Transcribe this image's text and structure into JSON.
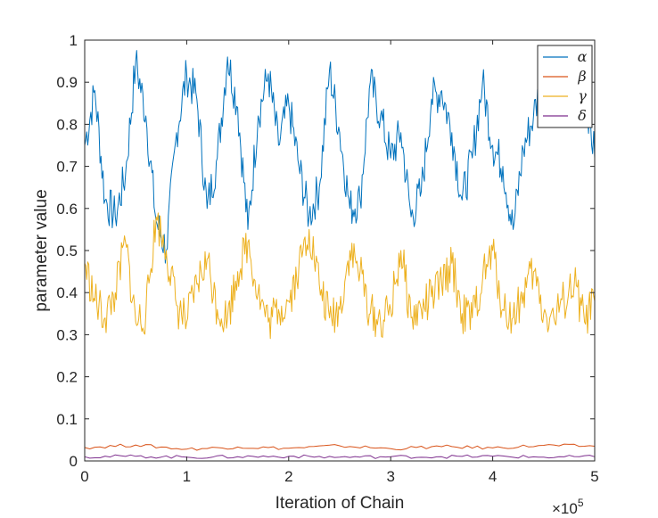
{
  "chart_data": {
    "type": "line",
    "title": "",
    "xlabel": "Iteration of Chain",
    "ylabel": "parameter value",
    "xlim": [
      0,
      5
    ],
    "ylim": [
      0,
      1
    ],
    "x_exponent_label": "×10",
    "x_exponent_power": "5",
    "x_ticks": [
      "0",
      "1",
      "2",
      "3",
      "4",
      "5"
    ],
    "y_ticks": [
      "0",
      "0.1",
      "0.2",
      "0.3",
      "0.4",
      "0.5",
      "0.6",
      "0.7",
      "0.8",
      "0.9",
      "1"
    ],
    "grid": false,
    "legend_position": "top-right",
    "series": [
      {
        "name": "α",
        "color": "#0072BD",
        "x": [
          0,
          0.1,
          0.2,
          0.3,
          0.4,
          0.5,
          0.6,
          0.7,
          0.8,
          0.9,
          1.0,
          1.1,
          1.2,
          1.3,
          1.4,
          1.5,
          1.6,
          1.7,
          1.8,
          1.9,
          2.0,
          2.1,
          2.2,
          2.3,
          2.4,
          2.5,
          2.6,
          2.7,
          2.8,
          2.9,
          3.0,
          3.1,
          3.2,
          3.3,
          3.4,
          3.5,
          3.6,
          3.7,
          3.8,
          3.9,
          4.0,
          4.1,
          4.2,
          4.3,
          4.4,
          4.5,
          4.6,
          4.7,
          4.8,
          4.9,
          5.0
        ],
        "values": [
          0.75,
          0.88,
          0.62,
          0.58,
          0.68,
          0.95,
          0.82,
          0.57,
          0.5,
          0.78,
          0.92,
          0.86,
          0.6,
          0.72,
          0.96,
          0.84,
          0.55,
          0.82,
          0.92,
          0.75,
          0.85,
          0.7,
          0.58,
          0.65,
          0.93,
          0.78,
          0.6,
          0.62,
          0.9,
          0.82,
          0.72,
          0.78,
          0.58,
          0.64,
          0.86,
          0.88,
          0.78,
          0.62,
          0.72,
          0.9,
          0.75,
          0.7,
          0.55,
          0.74,
          0.82,
          0.92,
          0.88,
          0.94,
          0.95,
          0.9,
          0.72
        ]
      },
      {
        "name": "β",
        "color": "#D95319",
        "x": [
          0,
          0.5,
          1.0,
          1.5,
          2.0,
          2.5,
          3.0,
          3.5,
          4.0,
          4.5,
          5.0
        ],
        "values": [
          0.032,
          0.038,
          0.028,
          0.033,
          0.03,
          0.036,
          0.029,
          0.034,
          0.031,
          0.037,
          0.035
        ]
      },
      {
        "name": "γ",
        "color": "#EDB120",
        "x": [
          0,
          0.1,
          0.2,
          0.3,
          0.4,
          0.5,
          0.6,
          0.7,
          0.8,
          0.9,
          1.0,
          1.1,
          1.2,
          1.3,
          1.4,
          1.5,
          1.6,
          1.7,
          1.8,
          1.9,
          2.0,
          2.1,
          2.2,
          2.3,
          2.4,
          2.5,
          2.6,
          2.7,
          2.8,
          2.9,
          3.0,
          3.1,
          3.2,
          3.3,
          3.4,
          3.5,
          3.6,
          3.7,
          3.8,
          3.9,
          4.0,
          4.1,
          4.2,
          4.3,
          4.4,
          4.5,
          4.6,
          4.7,
          4.8,
          4.9,
          5.0
        ],
        "values": [
          0.47,
          0.38,
          0.34,
          0.4,
          0.52,
          0.33,
          0.35,
          0.58,
          0.5,
          0.37,
          0.33,
          0.42,
          0.48,
          0.36,
          0.34,
          0.45,
          0.52,
          0.4,
          0.33,
          0.36,
          0.38,
          0.46,
          0.55,
          0.42,
          0.34,
          0.36,
          0.5,
          0.45,
          0.35,
          0.33,
          0.36,
          0.5,
          0.34,
          0.36,
          0.39,
          0.42,
          0.47,
          0.35,
          0.34,
          0.43,
          0.5,
          0.36,
          0.34,
          0.4,
          0.45,
          0.35,
          0.34,
          0.38,
          0.42,
          0.33,
          0.38
        ]
      },
      {
        "name": "δ",
        "color": "#7E2F8E",
        "x": [
          0,
          0.5,
          1.0,
          1.5,
          2.0,
          2.5,
          3.0,
          3.5,
          4.0,
          4.5,
          5.0
        ],
        "values": [
          0.01,
          0.011,
          0.009,
          0.01,
          0.011,
          0.009,
          0.01,
          0.01,
          0.011,
          0.009,
          0.01
        ]
      }
    ]
  }
}
